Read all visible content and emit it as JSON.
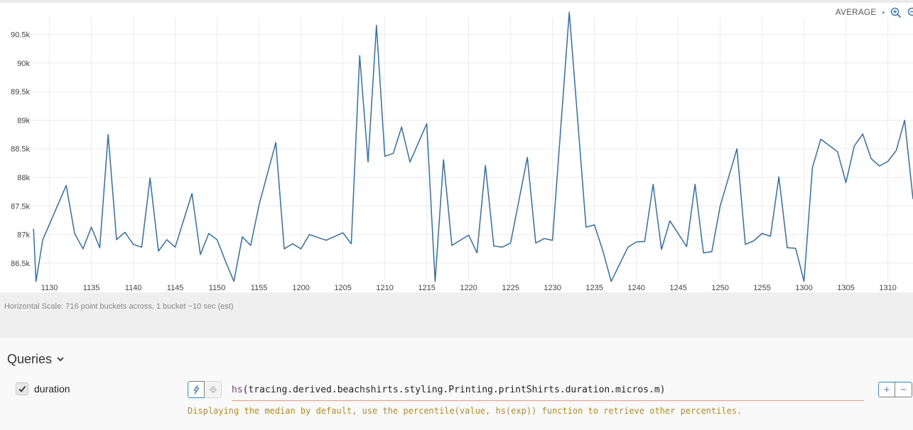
{
  "chart": {
    "aggregate_label": "AVERAGE",
    "separator": "•",
    "line_color": "#2f6fb0",
    "grid_color": "#ebebeb",
    "icons": [
      "zoom-in-icon",
      "zoom-out-icon"
    ]
  },
  "chart_data": {
    "type": "line",
    "title": "",
    "xlabel": "",
    "ylabel": "",
    "xlim": [
      1128,
      1313
    ],
    "ylim": [
      86200,
      90980
    ],
    "x_ticks": [
      1130,
      1135,
      1140,
      1145,
      1150,
      1155,
      1200,
      1205,
      1210,
      1215,
      1220,
      1225,
      1230,
      1235,
      1240,
      1245,
      1250,
      1255,
      1300,
      1305,
      1310
    ],
    "y_ticks": [
      {
        "value": 86500,
        "label": "86.5k"
      },
      {
        "value": 87000,
        "label": "87k"
      },
      {
        "value": 87500,
        "label": "87.5k"
      },
      {
        "value": 88000,
        "label": "88k"
      },
      {
        "value": 88500,
        "label": "88.5k"
      },
      {
        "value": 89000,
        "label": "89k"
      },
      {
        "value": 89500,
        "label": "89.5k"
      },
      {
        "value": 90000,
        "label": "90k"
      },
      {
        "value": 90500,
        "label": "90.5k"
      }
    ],
    "grid": true,
    "series": [
      {
        "values": [
          [
            1128.1,
            87100
          ],
          [
            1128.4,
            86180
          ],
          [
            1129.2,
            86910
          ],
          [
            1132,
            87860
          ],
          [
            1133,
            87020
          ],
          [
            1134,
            86750
          ],
          [
            1135,
            87130
          ],
          [
            1136,
            86770
          ],
          [
            1137,
            88750
          ],
          [
            1138,
            86910
          ],
          [
            1139,
            87040
          ],
          [
            1140,
            86830
          ],
          [
            1141,
            86780
          ],
          [
            1142,
            87990
          ],
          [
            1143,
            86710
          ],
          [
            1144,
            86910
          ],
          [
            1145,
            86780
          ],
          [
            1147,
            87720
          ],
          [
            1148,
            86650
          ],
          [
            1149,
            87020
          ],
          [
            1150,
            86910
          ],
          [
            1151,
            86530
          ],
          [
            1152,
            86180
          ],
          [
            1153,
            86960
          ],
          [
            1154,
            86810
          ],
          [
            1155,
            87520
          ],
          [
            1157,
            88610
          ],
          [
            1158,
            86750
          ],
          [
            1159,
            86840
          ],
          [
            1200,
            86750
          ],
          [
            1201,
            87000
          ],
          [
            1203,
            86900
          ],
          [
            1205,
            87030
          ],
          [
            1206,
            86840
          ],
          [
            1207,
            90130
          ],
          [
            1208,
            88270
          ],
          [
            1209,
            90660
          ],
          [
            1210,
            88370
          ],
          [
            1211,
            88420
          ],
          [
            1212,
            88880
          ],
          [
            1213,
            88270
          ],
          [
            1215,
            88940
          ],
          [
            1216,
            86180
          ],
          [
            1217,
            88310
          ],
          [
            1218,
            86810
          ],
          [
            1220,
            86990
          ],
          [
            1221,
            86680
          ],
          [
            1222,
            88210
          ],
          [
            1223,
            86800
          ],
          [
            1224,
            86780
          ],
          [
            1225,
            86850
          ],
          [
            1227,
            88350
          ],
          [
            1228,
            86850
          ],
          [
            1229,
            86930
          ],
          [
            1230,
            86900
          ],
          [
            1232,
            90890
          ],
          [
            1234,
            87130
          ],
          [
            1235,
            87170
          ],
          [
            1236,
            86720
          ],
          [
            1237,
            86180
          ],
          [
            1239,
            86780
          ],
          [
            1240,
            86870
          ],
          [
            1241,
            86880
          ],
          [
            1242,
            87880
          ],
          [
            1243,
            86740
          ],
          [
            1244,
            87240
          ],
          [
            1246,
            86790
          ],
          [
            1247,
            87880
          ],
          [
            1248,
            86680
          ],
          [
            1249,
            86700
          ],
          [
            1250,
            87500
          ],
          [
            1252,
            88500
          ],
          [
            1253,
            86830
          ],
          [
            1254,
            86890
          ],
          [
            1255,
            87020
          ],
          [
            1256,
            86970
          ],
          [
            1257,
            88010
          ],
          [
            1258,
            86770
          ],
          [
            1259,
            86760
          ],
          [
            1300,
            86180
          ],
          [
            1301,
            88170
          ],
          [
            1302,
            88670
          ],
          [
            1304,
            88450
          ],
          [
            1305,
            87910
          ],
          [
            1306,
            88550
          ],
          [
            1307,
            88760
          ],
          [
            1308,
            88330
          ],
          [
            1309,
            88200
          ],
          [
            1310,
            88280
          ],
          [
            1311,
            88470
          ],
          [
            1312,
            89000
          ],
          [
            1313,
            87620
          ]
        ]
      }
    ]
  },
  "scale_note": "Horizontal Scale: 716 point buckets across, 1 bucket ~10 sec (est)",
  "queries": {
    "header": "Queries",
    "items": [
      {
        "name": "duration",
        "checked": true,
        "expression_fn": "hs",
        "expression_rest": "(tracing.derived.beachshirts.styling.Printing.printShirts.duration.micros.m)",
        "hint": "Displaying the median by default, use the percentile(value, hs(exp)) function to retrieve other percentiles.",
        "add_label": "+",
        "remove_label": "−"
      }
    ]
  }
}
